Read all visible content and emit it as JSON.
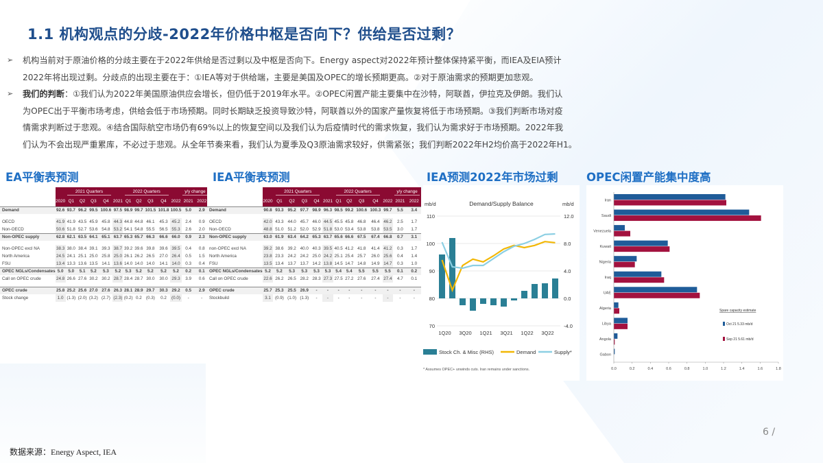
{
  "title": "1.1  机构观点的分歧-2022年价格中枢是否向下？供给是否过剩？",
  "bullets": [
    {
      "bold": "",
      "lines": [
        "机构当前对于原油价格的分歧主要在于2022年供给是否过剩以及中枢是否向下。Energy aspect对2022年预计整体保持紧平衡，而IEA及EIA预计",
        "2022年将出现过剩。分歧点的出现主要在于：①IEA等对于供给端，主要是美国及OPEC的增长预期更高。②对于原油需求的预期更加悲观。"
      ]
    },
    {
      "bold": "我们的判断",
      "lines": [
        "：①我们认为2022年美国原油供应会增长，但仍低于2019年水平。②OPEC闲置产能主要集中在沙特，阿联酋，伊拉克及伊朗。我们认",
        "为OPEC出于平衡市场考虑，供给会低于市场预期。同时长期缺乏投资导致沙特，阿联酋以外的国家产量恢复将低于市场预期。③我们判断市场对疫",
        "情需求判断过于悲观。④结合国际航空市场仍有69%以上的恢复空间以及我们认为后疫情时代的需求恢复，我们认为需求好于市场预期。2022年我",
        "们认为不会出现严重累库，不必过于悲观。从全年节奏来看，我们认为夏季及Q3原油需求较好，供需紧张；我们判断2022年H2均价高于2022年H1。"
      ]
    }
  ],
  "sections": {
    "ea": "EA平衡表预测",
    "iea": "IEA平衡表预测",
    "iea_chart": "IEA预测2022年市场过剩",
    "opec": "OPEC闲置产能集中度高"
  },
  "table_header": {
    "group1": "2021 Quarters",
    "group2": "2022 Quarters",
    "group3": "y/y change",
    "cols": [
      "2020",
      "Q1",
      "Q2",
      "Q3",
      "Q4",
      "2021",
      "Q1",
      "Q2",
      "Q3",
      "Q4",
      "2022",
      "2021",
      "2022"
    ]
  },
  "ea_table": [
    {
      "label": "Demand",
      "bold": true,
      "v": [
        "92.6",
        "93.7",
        "96.2",
        "99.5",
        "100.6",
        "97.5",
        "98.9",
        "99.7",
        "101.5",
        "101.8",
        "100.5",
        "5.0",
        "2.9"
      ]
    },
    {
      "label": "OECD",
      "bold": false,
      "v": [
        "41.9",
        "41.9",
        "43.5",
        "45.9",
        "45.8",
        "44.3",
        "44.8",
        "44.8",
        "46.1",
        "45.3",
        "45.2",
        "2.4",
        "0.9"
      ]
    },
    {
      "label": "Non-OECD",
      "bold": false,
      "v": [
        "50.6",
        "51.8",
        "52.7",
        "53.6",
        "54.8",
        "53.2",
        "54.1",
        "54.8",
        "55.5",
        "56.5",
        "55.3",
        "2.6",
        "2.0"
      ]
    },
    {
      "label": "Non-OPEC supply",
      "bold": true,
      "v": [
        "62.8",
        "62.1",
        "63.5",
        "64.1",
        "65.1",
        "63.7",
        "65.3",
        "65.7",
        "66.3",
        "66.6",
        "66.0",
        "0.9",
        "2.3"
      ]
    },
    {
      "label": "Non-OPEC excl NA",
      "bold": false,
      "v": [
        "38.3",
        "38.0",
        "38.4",
        "39.1",
        "39.3",
        "38.7",
        "39.2",
        "39.6",
        "39.8",
        "39.6",
        "39.5",
        "0.4",
        "0.8"
      ]
    },
    {
      "label": "North America",
      "bold": false,
      "v": [
        "24.5",
        "24.1",
        "25.1",
        "25.0",
        "25.8",
        "25.0",
        "26.1",
        "26.2",
        "26.5",
        "27.0",
        "26.4",
        "0.5",
        "1.5"
      ]
    },
    {
      "label": "FSU",
      "bold": false,
      "v": [
        "13.4",
        "13.3",
        "13.6",
        "13.5",
        "14.1",
        "13.6",
        "14.0",
        "14.0",
        "14.0",
        "14.1",
        "14.0",
        "0.3",
        "0.4"
      ]
    },
    {
      "label": "OPEC NGLs/Condensates",
      "bold": true,
      "v": [
        "5.0",
        "5.0",
        "5.1",
        "5.2",
        "5.3",
        "5.2",
        "5.3",
        "5.2",
        "5.2",
        "5.2",
        "5.2",
        "0.2",
        "0.1"
      ]
    },
    {
      "label": "Call on OPEC crude",
      "bold": false,
      "v": [
        "24.8",
        "26.6",
        "27.6",
        "30.2",
        "30.2",
        "28.7",
        "28.4",
        "28.7",
        "30.0",
        "30.0",
        "29.3",
        "3.9",
        "0.6"
      ]
    },
    {
      "label": "OPEC crude",
      "bold": true,
      "v": [
        "25.8",
        "25.2",
        "25.6",
        "27.0",
        "27.6",
        "26.3",
        "28.1",
        "28.9",
        "29.7",
        "30.3",
        "29.2",
        "0.5",
        "2.9"
      ]
    },
    {
      "label": "Stock change",
      "bold": false,
      "v": [
        "1.0",
        "(1.3)",
        "(2.0)",
        "(3.2)",
        "(2.7)",
        "(2.3)",
        "(0.2)",
        "0.2",
        "(0.3)",
        "0.2",
        "(0.0)",
        "-",
        "-"
      ]
    }
  ],
  "iea_table": [
    {
      "label": "Demand",
      "bold": true,
      "v": [
        "90.8",
        "93.3",
        "95.2",
        "97.7",
        "98.9",
        "96.3",
        "98.5",
        "99.2",
        "100.6",
        "100.3",
        "99.7",
        "5.5",
        "3.4"
      ]
    },
    {
      "label": "OECD",
      "bold": false,
      "v": [
        "42.0",
        "43.3",
        "44.0",
        "45.7",
        "46.0",
        "44.5",
        "45.5",
        "45.8",
        "46.8",
        "46.4",
        "46.2",
        "2.5",
        "1.7"
      ]
    },
    {
      "label": "Non-OECD",
      "bold": false,
      "v": [
        "48.8",
        "51.0",
        "51.2",
        "52.0",
        "52.9",
        "51.8",
        "53.0",
        "53.4",
        "53.8",
        "53.8",
        "53.5",
        "3.0",
        "1.7"
      ]
    },
    {
      "label": "Non-OPEC supply",
      "bold": true,
      "v": [
        "63.0",
        "61.9",
        "63.4",
        "64.2",
        "65.3",
        "63.7",
        "65.6",
        "66.6",
        "67.5",
        "67.4",
        "66.8",
        "0.7",
        "3.1"
      ]
    },
    {
      "label": "non-OPEC excl NA",
      "bold": false,
      "v": [
        "39.2",
        "38.6",
        "39.2",
        "40.0",
        "40.3",
        "39.5",
        "40.5",
        "41.2",
        "41.8",
        "41.4",
        "41.2",
        "0.3",
        "1.7"
      ]
    },
    {
      "label": "North America",
      "bold": false,
      "v": [
        "23.8",
        "23.3",
        "24.2",
        "24.2",
        "25.0",
        "24.2",
        "25.1",
        "25.4",
        "25.7",
        "26.0",
        "25.6",
        "0.4",
        "1.4"
      ]
    },
    {
      "label": "FSU",
      "bold": false,
      "v": [
        "13.5",
        "13.4",
        "13.7",
        "13.7",
        "14.2",
        "13.8",
        "14.5",
        "14.7",
        "14.8",
        "14.9",
        "14.7",
        "0.3",
        "1.0"
      ]
    },
    {
      "label": "OPEC NGLs/Condensates",
      "bold": true,
      "v": [
        "5.2",
        "5.2",
        "5.3",
        "5.3",
        "5.3",
        "5.3",
        "5.4",
        "5.4",
        "5.5",
        "5.5",
        "5.5",
        "0.1",
        "0.2"
      ]
    },
    {
      "label": "Call on OPEC crude",
      "bold": false,
      "v": [
        "22.6",
        "26.2",
        "26.5",
        "28.2",
        "28.3",
        "27.3",
        "27.5",
        "27.2",
        "27.6",
        "27.4",
        "27.4",
        "4.7",
        "0.1"
      ]
    },
    {
      "label": "OPEC crude",
      "bold": true,
      "v": [
        "25.7",
        "25.3",
        "25.5",
        "26.9",
        "-",
        "-",
        "-",
        "-",
        "-",
        "-",
        "-",
        "-",
        "-"
      ]
    },
    {
      "label": "Stockbuild",
      "bold": false,
      "v": [
        "3.1",
        "(0.9)",
        "(1.0)",
        "(1.3)",
        "-",
        "-",
        "-",
        "-",
        "-",
        "-",
        "-",
        "-",
        "-"
      ]
    }
  ],
  "chart_data": [
    {
      "type": "bar+line",
      "title": "Demand/Supply Balance",
      "ylabel_left": "mb/d",
      "ylabel_right": "mb/d",
      "ylim_left": [
        70,
        110
      ],
      "yticks_left": [
        "110",
        "100",
        "90",
        "80",
        "70"
      ],
      "ylim_right": [
        -4.0,
        12.0
      ],
      "yticks_right": [
        "12.0",
        "8.0",
        "4.0",
        "0.0",
        "-4.0"
      ],
      "categories": [
        "1Q20",
        "2Q20",
        "3Q20",
        "4Q20",
        "1Q21",
        "2Q21",
        "3Q21",
        "4Q21",
        "1Q22",
        "2Q22",
        "3Q22",
        "4Q22"
      ],
      "xtick_labels": [
        "1Q20",
        "3Q20",
        "1Q21",
        "3Q21",
        "1Q22",
        "3Q22"
      ],
      "series": [
        {
          "name": "Stock Ch. & Misc (RHS)",
          "type": "bar",
          "color": "#2a7f95",
          "values": [
            6.4,
            8.8,
            -1.0,
            -1.8,
            -0.8,
            -1.0,
            -1.2,
            -0.3,
            1.1,
            2.1,
            2.2,
            2.9
          ]
        },
        {
          "name": "Demand",
          "type": "line",
          "color": "#f2b705",
          "values": [
            94.0,
            83.0,
            92.0,
            94.3,
            93.3,
            95.5,
            98.0,
            99.3,
            98.5,
            99.3,
            100.7,
            100.3
          ]
        },
        {
          "name": "Supply*",
          "type": "line",
          "color": "#8ccfe3",
          "values": [
            100.5,
            91.5,
            91.0,
            92.0,
            92.0,
            94.5,
            97.0,
            99.0,
            100.0,
            101.5,
            103.3,
            103.5
          ]
        }
      ],
      "legend": [
        "Stock Ch. & Misc (RHS)",
        "Demand",
        "Supply*"
      ],
      "footnote": "* Assumes OPEC+ unwinds cuts. Iran remains under sanctions."
    },
    {
      "type": "bar",
      "orientation": "horizontal",
      "categories": [
        "Iran",
        "Saudi",
        "Venezuela",
        "Kuwait",
        "Nigeria",
        "Iraq",
        "UAE",
        "Algeria",
        "Libya",
        "Angola",
        "Gabon"
      ],
      "xlim": [
        0,
        1.8
      ],
      "xticks": [
        "0.0",
        "0.2",
        "0.4",
        "0.6",
        "0.8",
        "1.0",
        "1.2",
        "1.4",
        "1.6",
        "1.8"
      ],
      "legend_title": "Spare capacity estimate",
      "series": [
        {
          "name": "Oct 21   5.33 mb/d",
          "color": "#1f5c99",
          "values": [
            1.22,
            1.48,
            0.12,
            0.59,
            0.25,
            0.52,
            0.91,
            0.05,
            0.15,
            0.04,
            0.01
          ]
        },
        {
          "name": "Sep 21   5.61 mb/d",
          "color": "#a3123f",
          "values": [
            1.23,
            1.61,
            0.18,
            0.61,
            0.23,
            0.55,
            0.94,
            0.06,
            0.15,
            0.01,
            0.0
          ]
        }
      ]
    }
  ],
  "footer": {
    "source": "数据来源：Energy  Aspect, IEA",
    "page": "6 /"
  }
}
